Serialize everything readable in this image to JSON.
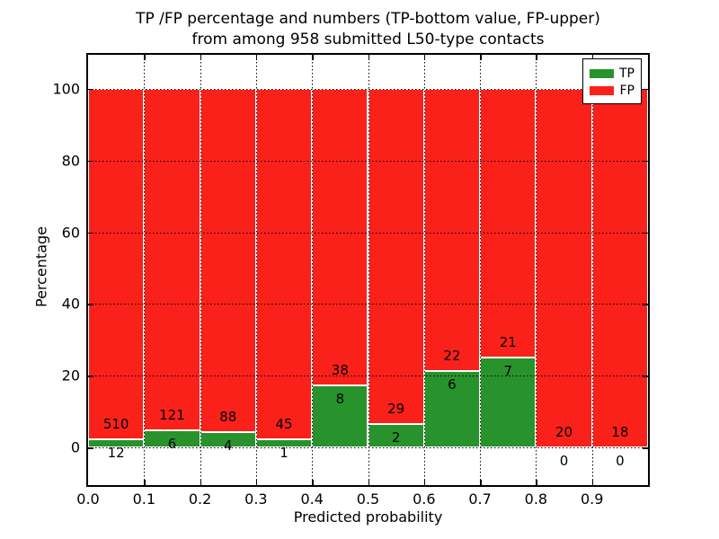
{
  "title": {
    "line1": "TP /FP percentage and numbers (TP-bottom value, FP-upper)",
    "line2": "from among 958 submitted L50-type contacts"
  },
  "axes": {
    "xlabel": "Predicted probability",
    "ylabel": "Percentage"
  },
  "legend": {
    "items": [
      {
        "label": "TP",
        "color": "#28932c"
      },
      {
        "label": "FP",
        "color": "#fa211a"
      }
    ]
  },
  "chart_data": {
    "type": "bar",
    "subtype": "stacked-percentage-histogram",
    "title": "TP /FP percentage and numbers (TP-bottom value, FP-upper) from among 958 submitted L50-type contacts",
    "xlabel": "Predicted probability",
    "ylabel": "Percentage",
    "total_contacts": 958,
    "bin_edges": [
      0.0,
      0.1,
      0.2,
      0.3,
      0.4,
      0.5,
      0.6,
      0.7,
      0.8,
      0.9,
      1.0
    ],
    "series": [
      {
        "name": "TP",
        "color": "#28932c",
        "counts": [
          12,
          6,
          4,
          1,
          8,
          2,
          6,
          7,
          0,
          0
        ]
      },
      {
        "name": "FP",
        "color": "#fa211a",
        "counts": [
          510,
          121,
          88,
          45,
          38,
          29,
          22,
          21,
          20,
          18
        ]
      }
    ],
    "tp_percent_of_bin": [
      2.3,
      4.7,
      4.3,
      2.2,
      17.4,
      6.5,
      21.4,
      25.0,
      0.0,
      0.0
    ],
    "bars_reach_percent": 100,
    "x_ticks": [
      {
        "v": 0.0,
        "label": "0.0"
      },
      {
        "v": 0.1,
        "label": "0.1"
      },
      {
        "v": 0.2,
        "label": "0.2"
      },
      {
        "v": 0.3,
        "label": "0.3"
      },
      {
        "v": 0.4,
        "label": "0.4"
      },
      {
        "v": 0.5,
        "label": "0.5"
      },
      {
        "v": 0.6,
        "label": "0.6"
      },
      {
        "v": 0.7,
        "label": "0.7"
      },
      {
        "v": 0.8,
        "label": "0.8"
      },
      {
        "v": 0.9,
        "label": "0.9"
      }
    ],
    "y_ticks": [
      {
        "v": 0,
        "label": "0"
      },
      {
        "v": 20,
        "label": "20"
      },
      {
        "v": 40,
        "label": "40"
      },
      {
        "v": 60,
        "label": "60"
      },
      {
        "v": 80,
        "label": "80"
      },
      {
        "v": 100,
        "label": "100"
      }
    ],
    "xlim": [
      0.0,
      1.0
    ],
    "ylim": [
      -10.5,
      109.5
    ],
    "grid": {
      "on": true,
      "style": "dotted",
      "color": "#000000",
      "above_bars": true
    },
    "legend_position": "upper right"
  }
}
